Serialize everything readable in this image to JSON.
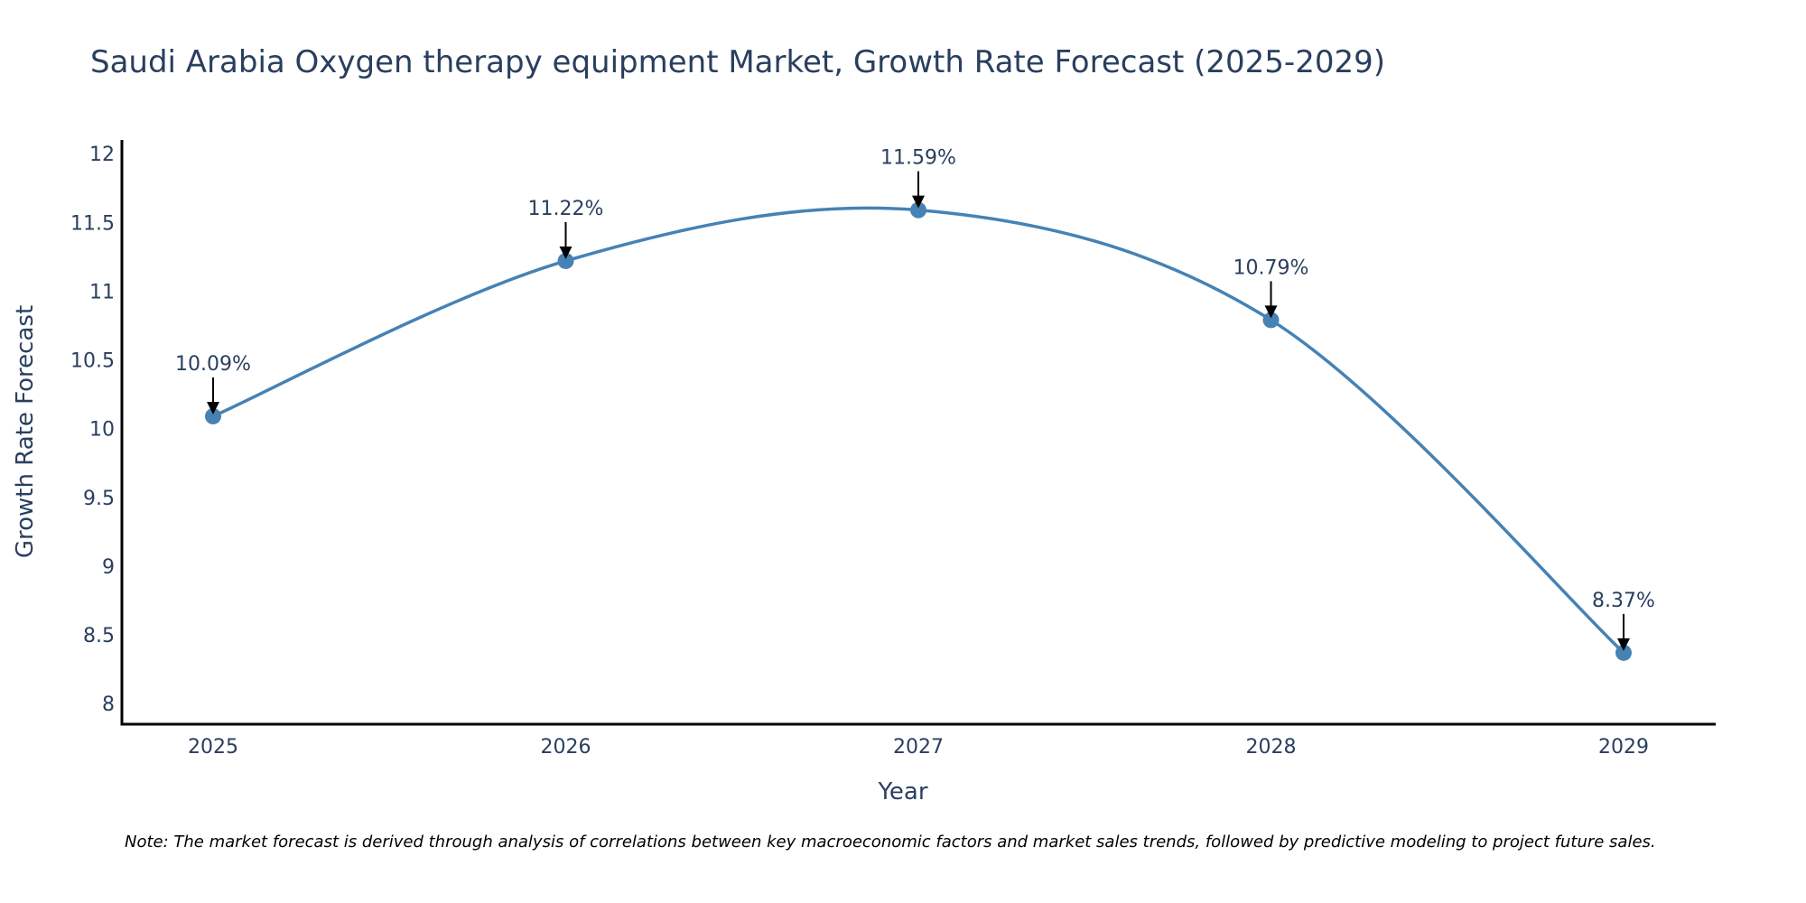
{
  "chart_data": {
    "type": "line",
    "title": "Saudi Arabia Oxygen therapy equipment Market, Growth Rate Forecast (2025-2029)",
    "xlabel": "Year",
    "ylabel": "Growth Rate Forecast",
    "categories": [
      "2025",
      "2026",
      "2027",
      "2028",
      "2029"
    ],
    "series": [
      {
        "name": "Growth Rate Forecast",
        "values": [
          10.09,
          11.22,
          11.59,
          10.79,
          8.37
        ],
        "color": "#4682B4",
        "line_shape": "spline"
      }
    ],
    "data_labels": [
      "10.09%",
      "11.22%",
      "11.59%",
      "10.79%",
      "8.37%"
    ],
    "ylim": [
      7.85,
      12.1
    ],
    "yticks": [
      8,
      8.5,
      9,
      9.5,
      10,
      10.5,
      11,
      11.5,
      12
    ],
    "ytick_labels": [
      "8",
      "8.5",
      "9",
      "9.5",
      "10",
      "10.5",
      "11",
      "11.5",
      "12"
    ],
    "grid": false,
    "annotation_arrow_color": "#000000",
    "axis_color": "#000000"
  },
  "note": "Note: The market forecast is derived through analysis of correlations between key macroeconomic factors and market sales trends, followed by predictive modeling to project future sales."
}
